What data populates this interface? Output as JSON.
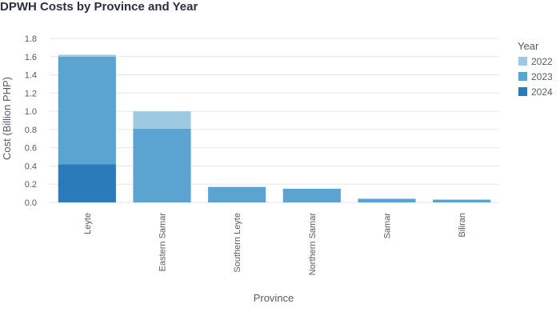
{
  "chart_data": {
    "type": "bar",
    "stacked": true,
    "title": "DPWH Costs by Province and Year",
    "xlabel": "Province",
    "ylabel": "Cost (Billion PHP)",
    "ylim": [
      0,
      1.8
    ],
    "yticks": [
      "0.0",
      "0.2",
      "0.4",
      "0.6",
      "0.8",
      "1.0",
      "1.2",
      "1.4",
      "1.6",
      "1.8"
    ],
    "grid": true,
    "legend_title": "Year",
    "legend_position": "right",
    "categories": [
      "Leyte",
      "Eastern Samar",
      "Southern Leyte",
      "Northern Samar",
      "Samar",
      "Biliran"
    ],
    "series": [
      {
        "name": "2024",
        "color": "#2b7bba",
        "values": [
          0.42,
          0,
          0,
          0,
          0,
          0
        ]
      },
      {
        "name": "2023",
        "color": "#5ba3d0",
        "values": [
          1.18,
          0.81,
          0.17,
          0.15,
          0.04,
          0.03
        ]
      },
      {
        "name": "2022",
        "color": "#9ecae1",
        "values": [
          0.02,
          0.19,
          0,
          0,
          0,
          0
        ]
      }
    ],
    "legend_order": [
      "2022",
      "2023",
      "2024"
    ]
  }
}
